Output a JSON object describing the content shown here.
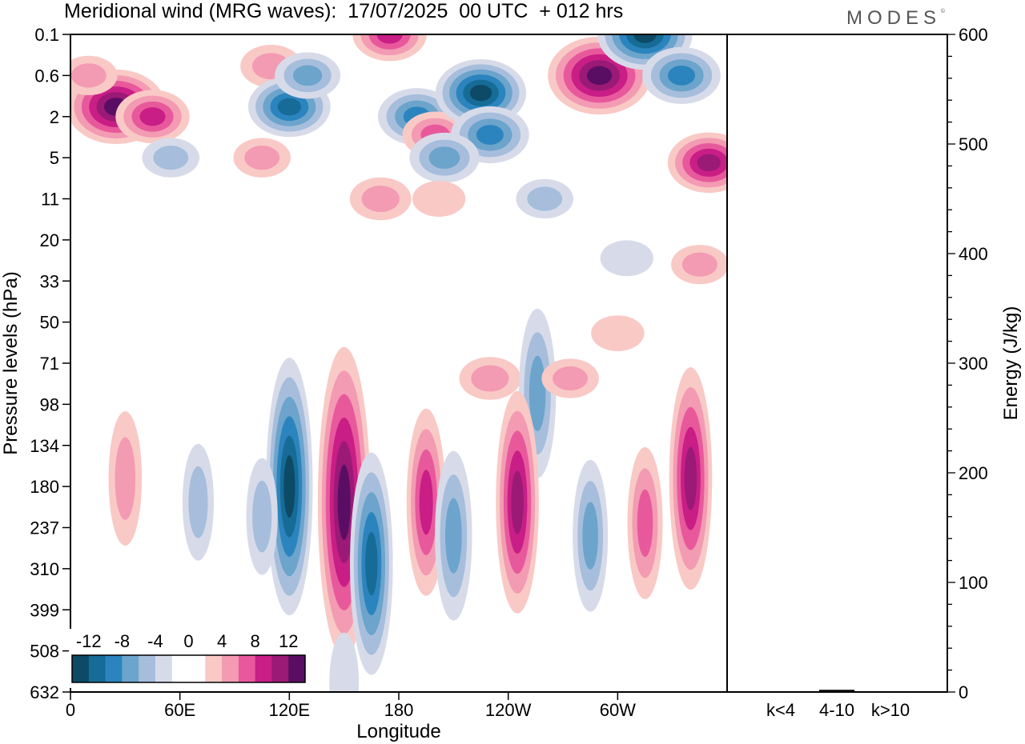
{
  "title": "Meridional wind (MRG waves):  17/07/2025  00 UTC  + 012 hrs",
  "logo": "MODES",
  "logo_mark": "©",
  "colors": {
    "blue_levels": [
      "#0d4a66",
      "#166c97",
      "#2b84be",
      "#6ca4cc",
      "#a6bedc",
      "#d7dbe9"
    ],
    "pink_levels": [
      "#f9c9c6",
      "#f39bb3",
      "#e8599c",
      "#c81e86",
      "#9a1a76",
      "#5a0e63"
    ],
    "zero": "#ffffff"
  },
  "chart_data": [
    {
      "type": "heatmap",
      "title": "Meridional wind (MRG waves):  17/07/2025  00 UTC  + 012 hrs",
      "xlabel": "Longitude",
      "ylabel": "Pressure levels (hPa)",
      "x_ticks": [
        "0",
        "60E",
        "120E",
        "180",
        "120W",
        "60W"
      ],
      "x_tick_values": [
        0,
        60,
        120,
        180,
        240,
        300
      ],
      "xlim": [
        0,
        360
      ],
      "y_ticks": [
        "0.1",
        "0.6",
        "2",
        "5",
        "11",
        "20",
        "33",
        "50",
        "71",
        "98",
        "134",
        "180",
        "237",
        "310",
        "399",
        "508",
        "632"
      ],
      "colorbar_labels": [
        "-12",
        "-8",
        "-4",
        "0",
        "4",
        "8",
        "12"
      ],
      "colorbar_levels": [
        -12,
        -10,
        -8,
        -6,
        -4,
        -2,
        0,
        2,
        4,
        6,
        8,
        10,
        12
      ],
      "features": [
        {
          "lon": 25,
          "level": 1.5,
          "value": 13
        },
        {
          "lon": 45,
          "level": 2.0,
          "value": 7
        },
        {
          "lon": 10,
          "level": 0.6,
          "value": 3
        },
        {
          "lon": 110,
          "level": 0.4,
          "value": 4
        },
        {
          "lon": 120,
          "level": 1.5,
          "value": -9
        },
        {
          "lon": 130,
          "level": 0.6,
          "value": -5
        },
        {
          "lon": 175,
          "level": 0.1,
          "value": 7
        },
        {
          "lon": 190,
          "level": 2.0,
          "value": -8
        },
        {
          "lon": 200,
          "level": 3.0,
          "value": 5
        },
        {
          "lon": 225,
          "level": 1.0,
          "value": -11
        },
        {
          "lon": 230,
          "level": 3.0,
          "value": -8
        },
        {
          "lon": 205,
          "level": 5.0,
          "value": -6
        },
        {
          "lon": 290,
          "level": 0.6,
          "value": 14
        },
        {
          "lon": 315,
          "level": 0.1,
          "value": -12
        },
        {
          "lon": 335,
          "level": 0.6,
          "value": -8
        },
        {
          "lon": 350,
          "level": 5.5,
          "value": 9
        },
        {
          "lon": 55,
          "level": 5.0,
          "value": -3
        },
        {
          "lon": 105,
          "level": 5.0,
          "value": 3
        },
        {
          "lon": 170,
          "level": 11,
          "value": 4
        },
        {
          "lon": 260,
          "level": 11,
          "value": -3
        },
        {
          "lon": 202,
          "level": 11,
          "value": 2
        },
        {
          "lon": 305,
          "level": 25,
          "value": -2
        },
        {
          "lon": 345,
          "level": 27,
          "value": 3
        },
        {
          "lon": 300,
          "level": 55,
          "value": 2
        },
        {
          "lon": 230,
          "level": 80,
          "value": 4
        },
        {
          "lon": 256,
          "level": 90,
          "value": -6
        },
        {
          "lon": 274,
          "level": 80,
          "value": 3
        },
        {
          "lon": 120,
          "level": 180,
          "value": -11
        },
        {
          "lon": 150,
          "level": 200,
          "value": 14
        },
        {
          "lon": 165,
          "level": 300,
          "value": -9
        },
        {
          "lon": 195,
          "level": 200,
          "value": 7
        },
        {
          "lon": 210,
          "level": 250,
          "value": -6
        },
        {
          "lon": 245,
          "level": 200,
          "value": 9
        },
        {
          "lon": 285,
          "level": 250,
          "value": -5
        },
        {
          "lon": 315,
          "level": 230,
          "value": 5
        },
        {
          "lon": 340,
          "level": 170,
          "value": 9
        },
        {
          "lon": 30,
          "level": 170,
          "value": 4
        },
        {
          "lon": 70,
          "level": 200,
          "value": -3
        },
        {
          "lon": 105,
          "level": 220,
          "value": -3
        },
        {
          "lon": 150,
          "level": 600,
          "value": -2
        }
      ]
    },
    {
      "type": "bar",
      "categories": [
        "k<4",
        "4-10",
        "k>10"
      ],
      "values": [
        0.5,
        2,
        0.5
      ],
      "ylabel": "Energy (J/kg)",
      "ylim": [
        0,
        600
      ],
      "y_ticks": [
        "0",
        "100",
        "200",
        "300",
        "400",
        "500",
        "600"
      ],
      "y_tick_values": [
        0,
        100,
        200,
        300,
        400,
        500,
        600
      ],
      "y_minor_step": 20
    }
  ]
}
